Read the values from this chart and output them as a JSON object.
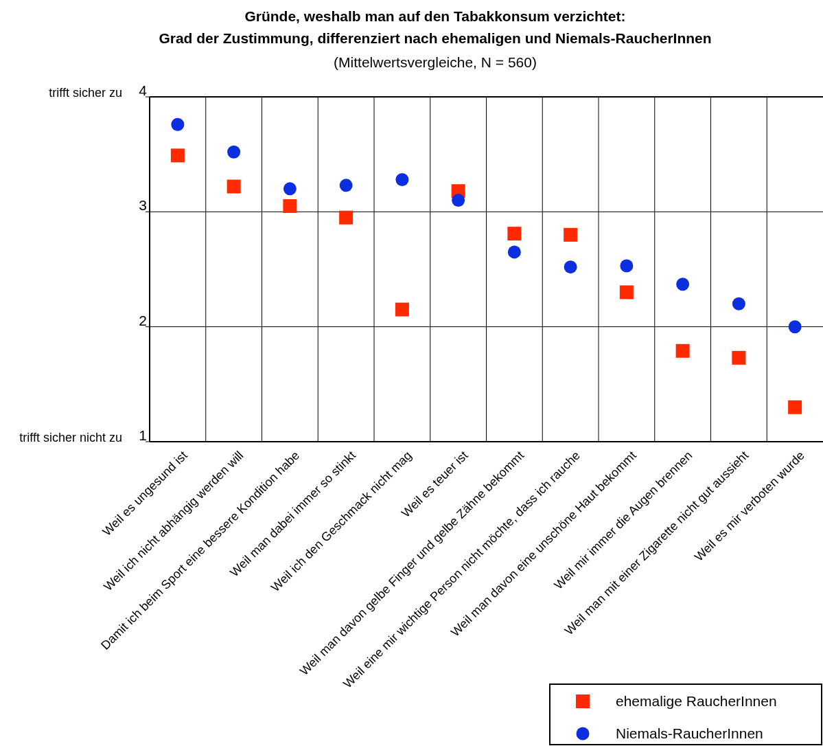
{
  "chart_data": {
    "type": "scatter",
    "title": "Gründe, weshalb man auf den Tabakkonsum verzichtet:\nGrad der Zustimmung, differenziert nach ehemaligen und Niemals-RaucherInnen",
    "subtitle": "(Mittelwertsvergleiche, N = 560)",
    "categories": [
      "Weil es ungesund ist",
      "Weil ich nicht abhängig werden will",
      "Damit ich beim Sport eine bessere Kondition habe",
      "Weil man dabei immer so stinkt",
      "Weil ich den Geschmack nicht mag",
      "Weil es teuer ist",
      "Weil man davon gelbe Finger und gelbe Zähne bekommt",
      "Weil eine mir wichtige Person nicht möchte, dass ich rauche",
      "Weil man davon eine unschöne Haut bekommt",
      "Weil mir immer die Augen brennen",
      "Weil man mit einer Zigarette nicht gut aussieht",
      "Weil es mir verboten wurde"
    ],
    "series": [
      {
        "name": "ehemalige RaucherInnen",
        "color": "#ff2a00",
        "marker": "square",
        "values": [
          3.49,
          3.22,
          3.05,
          2.95,
          2.15,
          3.18,
          2.81,
          2.8,
          2.3,
          1.79,
          1.73,
          1.3
        ]
      },
      {
        "name": "Niemals-RaucherInnen",
        "color": "#0a2ee0",
        "marker": "circle",
        "values": [
          3.76,
          3.52,
          3.2,
          3.23,
          3.28,
          3.1,
          2.65,
          2.52,
          2.53,
          2.37,
          2.2,
          2.0
        ]
      }
    ],
    "ylim": [
      1,
      4
    ],
    "yticks": [
      1,
      2,
      3,
      4
    ],
    "annotations": [
      "trifft sicher zu",
      "trifft sicher nicht zu"
    ],
    "grid": true,
    "legend": "bottom right"
  }
}
